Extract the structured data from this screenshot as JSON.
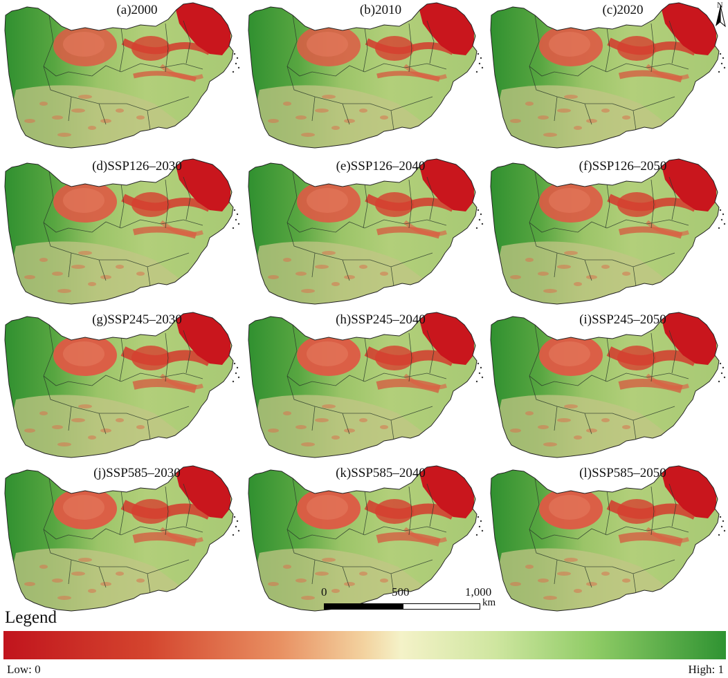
{
  "panels": [
    {
      "label": "(a)2000",
      "variant": 0
    },
    {
      "label": "(b)2010",
      "variant": 0
    },
    {
      "label": "(c)2020",
      "variant": 1
    },
    {
      "label": "(d)SSP126–2030",
      "variant": 1
    },
    {
      "label": "(e)SSP126–2040",
      "variant": 1
    },
    {
      "label": "(f)SSP126–2050",
      "variant": 1
    },
    {
      "label": "(g)SSP245–2030",
      "variant": 2
    },
    {
      "label": "(h)SSP245–2040",
      "variant": 2
    },
    {
      "label": "(i)SSP245–2050",
      "variant": 2
    },
    {
      "label": "(j)SSP585–2030",
      "variant": 2
    },
    {
      "label": "(k)SSP585–2040",
      "variant": 2
    },
    {
      "label": "(l)SSP585–2050",
      "variant": 2
    }
  ],
  "north_arrow": {
    "letter": "N",
    "icon": "north-arrow-icon"
  },
  "scale_bar": {
    "ticks": [
      "0",
      "500",
      "1,000"
    ],
    "unit": "km"
  },
  "legend": {
    "title": "Legend",
    "low_label": "Low: 0",
    "high_label": "High: 1",
    "colors": {
      "low": "#c1141d",
      "mid": "#f4f2c8",
      "high": "#2f9332"
    }
  }
}
